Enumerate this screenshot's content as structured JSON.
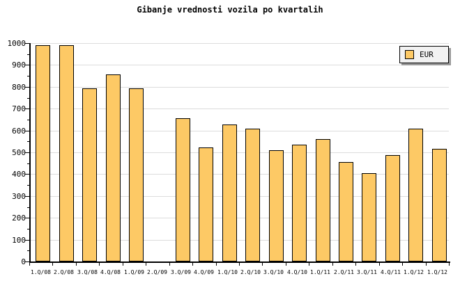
{
  "title": "Gibanje vrednosti vozila po kvartalih",
  "legend": {
    "label": "EUR"
  },
  "colors": {
    "background": "#ffffff",
    "bar_fill": "#FDC965",
    "bar_border": "#000000",
    "gridline": "#DCDCDC",
    "axis": "#000000",
    "legend_bg": "#F2F2F2",
    "legend_shadow": "#9A9A9A"
  },
  "chart_data": {
    "type": "bar",
    "title": "Gibanje vrednosti vozila po kvartalih",
    "categories": [
      "1.Q/08",
      "2.Q/08",
      "3.Q/08",
      "4.Q/08",
      "1.Q/09",
      "2.Q/09",
      "3.Q/09",
      "4.Q/09",
      "1.Q/10",
      "2.Q/10",
      "3.Q/10",
      "4.Q/10",
      "1.Q/11",
      "2.Q/11",
      "3.Q/11",
      "4.Q/11",
      "1.Q/12",
      "1.Q/12"
    ],
    "series": [
      {
        "name": "EUR",
        "values": [
          990,
          990,
          792,
          858,
          792,
          0,
          657,
          523,
          626,
          607,
          510,
          535,
          561,
          455,
          404,
          488,
          609,
          517
        ]
      }
    ],
    "ylim": [
      0,
      1000
    ],
    "yticks": [
      0,
      100,
      200,
      300,
      400,
      500,
      600,
      700,
      800,
      900,
      1000
    ],
    "minor_tick_step": 50,
    "grid": true,
    "legend_position": "top-right",
    "note_missing": "2.Q/09 has no bar (zero/missing value)"
  }
}
